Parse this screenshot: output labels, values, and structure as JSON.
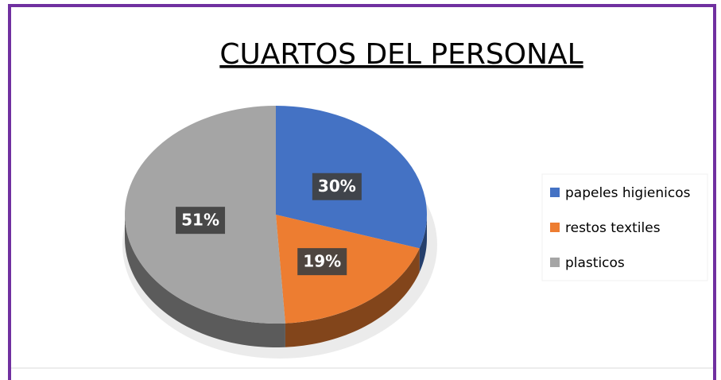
{
  "chart_data": {
    "type": "pie",
    "title": "CUARTOS DEL PERSONAL",
    "categories": [
      "papeles higienicos",
      "restos textiles",
      "plasticos"
    ],
    "values": [
      30,
      19,
      51
    ],
    "value_labels": [
      "30%",
      "19%",
      "51%"
    ],
    "colors": [
      "#4472c4",
      "#ed7d31",
      "#a5a5a5"
    ],
    "legend": "right"
  }
}
